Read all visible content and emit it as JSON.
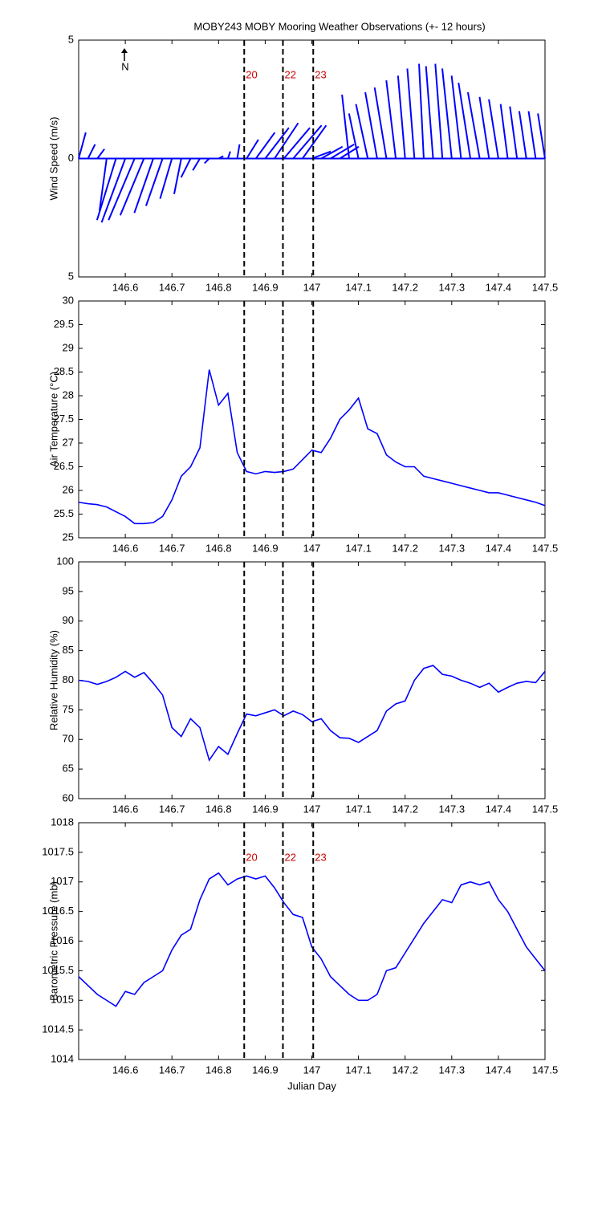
{
  "chart_data": [
    {
      "type": "stick",
      "title": "MOBY243 MOBY Mooring Weather Observations (+- 12 hours)",
      "ylabel": "Wind Speed (m/s)",
      "north_label": "N",
      "color": "#0000ff",
      "xlim": [
        146.5,
        147.5
      ],
      "xticks": [
        146.6,
        146.7,
        146.8,
        146.9,
        147,
        147.1,
        147.2,
        147.3,
        147.4,
        147.5
      ],
      "ylim": [
        -5,
        5
      ],
      "yticks": [
        {
          "value": -5,
          "label": "5"
        },
        0,
        5
      ],
      "x": [
        146.5,
        146.52,
        146.54,
        146.56,
        146.58,
        146.6,
        146.62,
        146.64,
        146.66,
        146.68,
        146.7,
        146.72,
        146.74,
        146.76,
        146.78,
        146.8,
        146.82,
        146.84,
        146.86,
        146.88,
        146.9,
        146.92,
        146.94,
        146.96,
        146.98,
        147,
        147.02,
        147.04,
        147.06,
        147.08,
        147.1,
        147.12,
        147.14,
        147.16,
        147.18,
        147.2,
        147.22,
        147.24,
        147.26,
        147.28,
        147.3,
        147.32,
        147.34,
        147.36,
        147.38,
        147.4,
        147.42,
        147.44,
        147.46,
        147.48,
        147.5
      ],
      "u": [
        0.3,
        0.3,
        0.3,
        -0.3,
        -0.8,
        -1.0,
        -1.1,
        -1.0,
        -0.8,
        -0.7,
        -0.5,
        -0.3,
        -0.4,
        -0.3,
        -0.2,
        0.2,
        0.1,
        0.1,
        0.5,
        0.8,
        1.0,
        1.0,
        1.1,
        1.2,
        1.0,
        0.8,
        0.9,
        1.0,
        0.8,
        -0.3,
        -0.4,
        -0.5,
        -0.5,
        -0.5,
        -0.4,
        -0.3,
        -0.3,
        -0.2,
        -0.3,
        -0.3,
        -0.4,
        -0.4,
        -0.5,
        -0.5,
        -0.4,
        -0.4,
        -0.3,
        -0.3,
        -0.3,
        -0.3,
        -0.3
      ],
      "v": [
        1.1,
        0.6,
        0.4,
        -2.2,
        -2.6,
        -2.7,
        -2.6,
        -2.4,
        -2.3,
        -2.0,
        -1.7,
        -1.5,
        -0.8,
        -0.5,
        -0.2,
        0.1,
        0.3,
        0.6,
        0.8,
        1.1,
        1.3,
        1.5,
        1.3,
        1.4,
        1.4,
        0.3,
        0.5,
        0.6,
        0.5,
        2.7,
        1.9,
        2.3,
        2.8,
        3.0,
        3.3,
        3.5,
        3.8,
        4.0,
        3.9,
        4.0,
        3.8,
        3.5,
        3.2,
        2.8,
        2.6,
        2.5,
        2.3,
        2.2,
        2.0,
        2.0,
        1.9
      ],
      "markers": {
        "x": [
          146.855,
          146.938,
          147.003
        ],
        "labels": [
          "20",
          "22",
          "23"
        ],
        "line_color": "#000000",
        "label_color": "#cc0000"
      }
    },
    {
      "type": "line",
      "ylabel": "Air Temperature (°C)",
      "color": "#0000ff",
      "xlim": [
        146.5,
        147.5
      ],
      "xticks": [
        146.6,
        146.7,
        146.8,
        146.9,
        147,
        147.1,
        147.2,
        147.3,
        147.4,
        147.5
      ],
      "ylim": [
        25,
        30
      ],
      "yticks": [
        25,
        25.5,
        26,
        26.5,
        27,
        27.5,
        28,
        28.5,
        29,
        29.5,
        30
      ],
      "x": [
        146.5,
        146.52,
        146.54,
        146.56,
        146.58,
        146.6,
        146.62,
        146.64,
        146.66,
        146.68,
        146.7,
        146.72,
        146.74,
        146.76,
        146.78,
        146.8,
        146.82,
        146.84,
        146.86,
        146.88,
        146.9,
        146.92,
        146.94,
        146.96,
        146.98,
        147,
        147.02,
        147.04,
        147.06,
        147.08,
        147.1,
        147.12,
        147.14,
        147.16,
        147.18,
        147.2,
        147.22,
        147.24,
        147.26,
        147.28,
        147.3,
        147.32,
        147.34,
        147.36,
        147.38,
        147.4,
        147.42,
        147.44,
        147.46,
        147.48,
        147.5
      ],
      "values": [
        25.75,
        25.72,
        25.7,
        25.65,
        25.55,
        25.45,
        25.3,
        25.3,
        25.32,
        25.45,
        25.8,
        26.3,
        26.5,
        26.9,
        28.55,
        27.8,
        28.05,
        26.8,
        26.4,
        26.35,
        26.4,
        26.38,
        26.4,
        26.45,
        26.65,
        26.85,
        26.8,
        27.1,
        27.5,
        27.7,
        27.95,
        27.3,
        27.2,
        26.75,
        26.6,
        26.5,
        26.5,
        26.3,
        26.25,
        26.2,
        26.15,
        26.1,
        26.05,
        26.0,
        25.95,
        25.95,
        25.9,
        25.85,
        25.8,
        25.75,
        25.68
      ],
      "markers": {
        "x": [
          146.855,
          146.938,
          147.003
        ],
        "line_color": "#000000"
      }
    },
    {
      "type": "line",
      "ylabel": "Relative Humidity (%)",
      "color": "#0000ff",
      "xlim": [
        146.5,
        147.5
      ],
      "xticks": [
        146.6,
        146.7,
        146.8,
        146.9,
        147,
        147.1,
        147.2,
        147.3,
        147.4,
        147.5
      ],
      "ylim": [
        60,
        100
      ],
      "yticks": [
        60,
        65,
        70,
        75,
        80,
        85,
        90,
        95,
        100
      ],
      "x": [
        146.5,
        146.52,
        146.54,
        146.56,
        146.58,
        146.6,
        146.62,
        146.64,
        146.66,
        146.68,
        146.7,
        146.72,
        146.74,
        146.76,
        146.78,
        146.8,
        146.82,
        146.84,
        146.86,
        146.88,
        146.9,
        146.92,
        146.94,
        146.96,
        146.98,
        147,
        147.02,
        147.04,
        147.06,
        147.08,
        147.1,
        147.12,
        147.14,
        147.16,
        147.18,
        147.2,
        147.22,
        147.24,
        147.26,
        147.28,
        147.3,
        147.32,
        147.34,
        147.36,
        147.38,
        147.4,
        147.42,
        147.44,
        147.46,
        147.48,
        147.5
      ],
      "values": [
        80,
        79.8,
        79.3,
        79.8,
        80.5,
        81.5,
        80.5,
        81.3,
        79.5,
        77.5,
        72,
        70.5,
        73.5,
        72,
        66.5,
        68.8,
        67.5,
        71,
        74.3,
        74,
        74.5,
        75,
        74,
        74.8,
        74.2,
        73,
        73.5,
        71.5,
        70.3,
        70.2,
        69.5,
        70.5,
        71.5,
        74.8,
        76,
        76.5,
        80,
        82,
        82.5,
        81,
        80.7,
        80,
        79.5,
        78.8,
        79.5,
        78,
        78.8,
        79.5,
        79.8,
        79.6,
        81.5
      ],
      "markers": {
        "x": [
          146.855,
          146.938,
          147.003
        ],
        "line_color": "#000000"
      }
    },
    {
      "type": "line",
      "ylabel": "Barometric Pressure (mb)",
      "xlabel": "Julian Day",
      "color": "#0000ff",
      "xlim": [
        146.5,
        147.5
      ],
      "xticks": [
        146.6,
        146.7,
        146.8,
        146.9,
        147,
        147.1,
        147.2,
        147.3,
        147.4,
        147.5
      ],
      "ylim": [
        1014,
        1018
      ],
      "yticks": [
        1014,
        1014.5,
        1015,
        1015.5,
        1016,
        1016.5,
        1017,
        1017.5,
        1018
      ],
      "x": [
        146.5,
        146.52,
        146.54,
        146.56,
        146.58,
        146.6,
        146.62,
        146.64,
        146.66,
        146.68,
        146.7,
        146.72,
        146.74,
        146.76,
        146.78,
        146.8,
        146.82,
        146.84,
        146.86,
        146.88,
        146.9,
        146.92,
        146.94,
        146.96,
        146.98,
        147,
        147.02,
        147.04,
        147.06,
        147.08,
        147.1,
        147.12,
        147.14,
        147.16,
        147.18,
        147.2,
        147.22,
        147.24,
        147.26,
        147.28,
        147.3,
        147.32,
        147.34,
        147.36,
        147.38,
        147.4,
        147.42,
        147.44,
        147.46,
        147.48,
        147.5
      ],
      "values": [
        1015.4,
        1015.25,
        1015.1,
        1015.0,
        1014.9,
        1015.15,
        1015.1,
        1015.3,
        1015.4,
        1015.5,
        1015.85,
        1016.1,
        1016.2,
        1016.7,
        1017.05,
        1017.15,
        1016.95,
        1017.05,
        1017.1,
        1017.05,
        1017.1,
        1016.9,
        1016.65,
        1016.45,
        1016.4,
        1015.9,
        1015.7,
        1015.4,
        1015.25,
        1015.1,
        1015.0,
        1015.0,
        1015.1,
        1015.5,
        1015.55,
        1015.8,
        1016.05,
        1016.3,
        1016.5,
        1016.7,
        1016.65,
        1016.95,
        1017.0,
        1016.95,
        1017.0,
        1016.7,
        1016.5,
        1016.2,
        1015.9,
        1015.7,
        1015.5
      ],
      "markers": {
        "x": [
          146.855,
          146.938,
          147.003
        ],
        "labels": [
          "20",
          "22",
          "23"
        ],
        "line_color": "#000000",
        "label_color": "#cc0000"
      }
    }
  ]
}
